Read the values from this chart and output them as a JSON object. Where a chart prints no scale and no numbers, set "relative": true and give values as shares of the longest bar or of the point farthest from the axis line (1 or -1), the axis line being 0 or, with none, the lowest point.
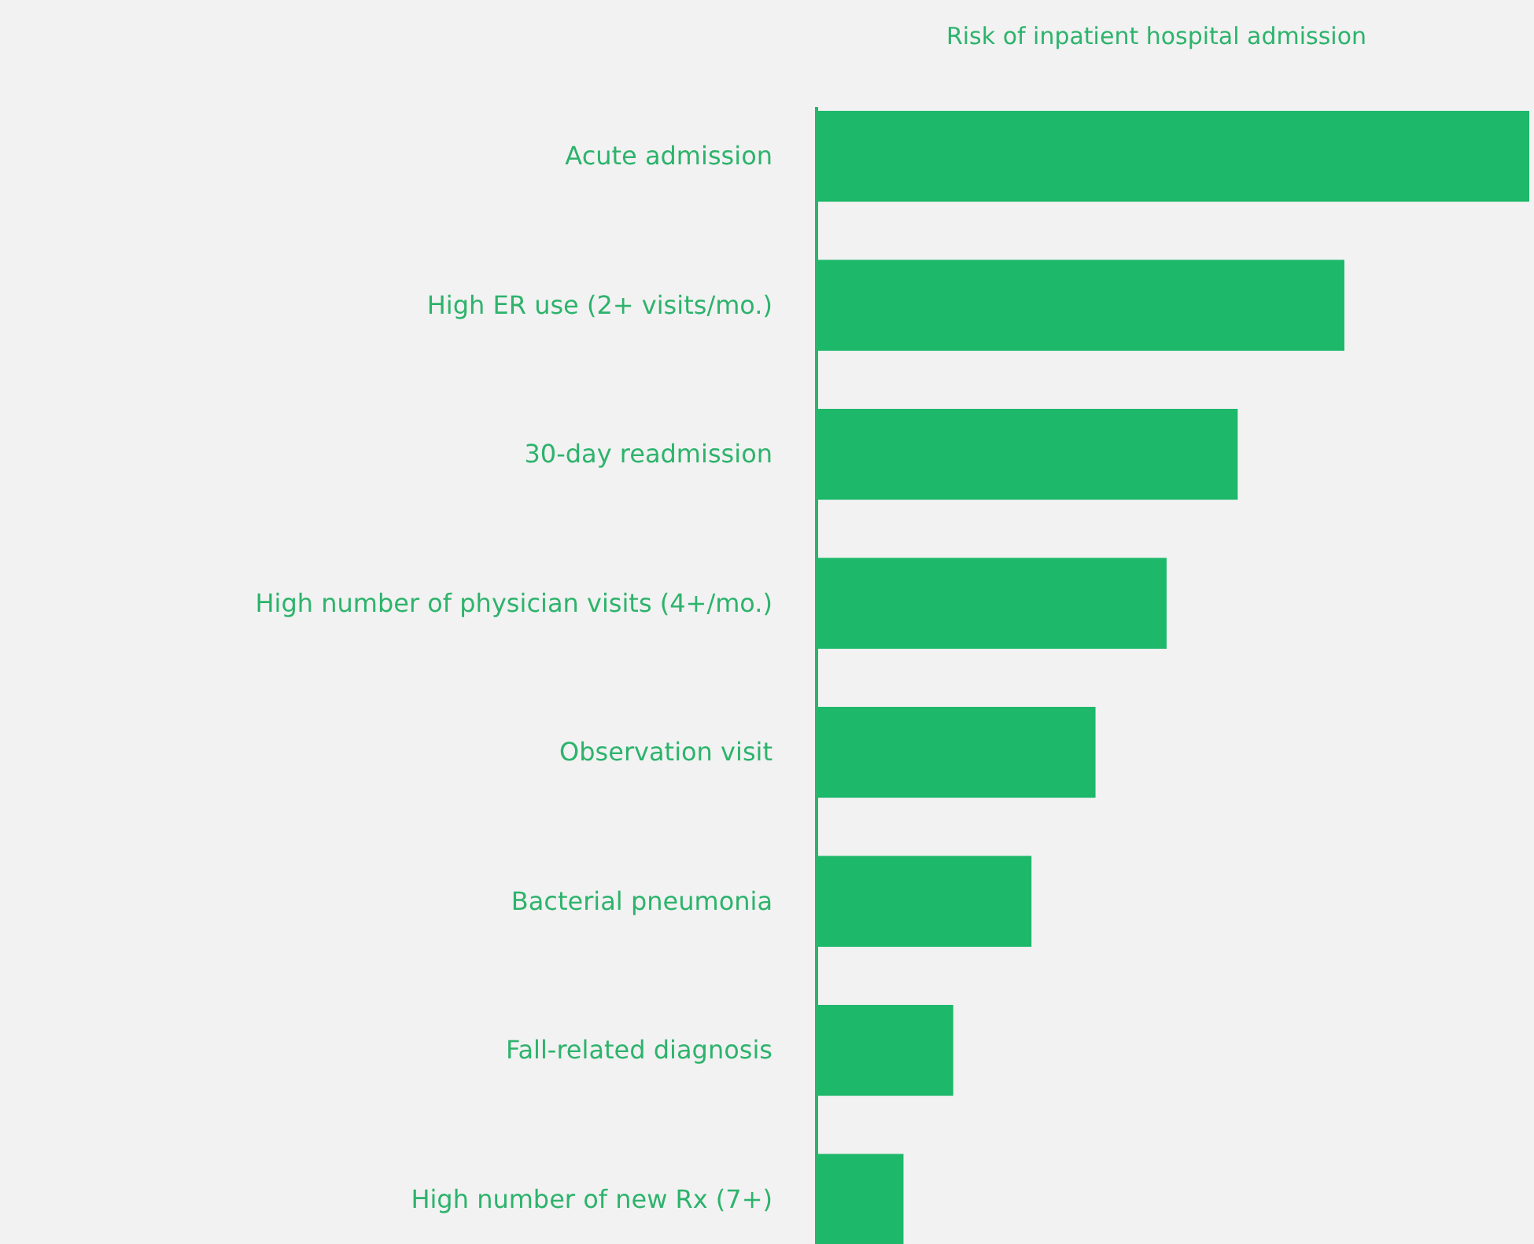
{
  "chart_data": {
    "type": "bar",
    "orientation": "horizontal",
    "relative": true,
    "title": "Risk of inpatient hospital admission",
    "categories": [
      "Acute admission",
      "High ER use (2+ visits/mo.)",
      "30-day readmission",
      "High number of physician visits (4+/mo.)",
      "Observation visit",
      "Bacterial pneumonia",
      "Fall-related diagnosis",
      "High number of new Rx (7+)"
    ],
    "values": [
      1,
      0.74,
      0.59,
      0.49,
      0.39,
      0.3,
      0.19,
      0.12
    ],
    "color": "#1db86a"
  }
}
